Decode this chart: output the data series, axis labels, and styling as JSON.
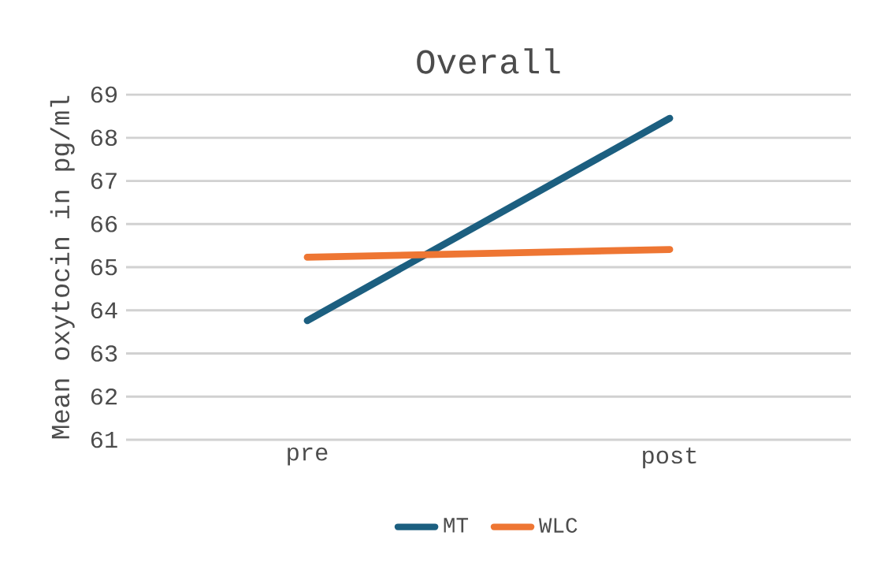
{
  "chart_data": {
    "type": "line",
    "title": "Overall",
    "ylabel": "Mean oxytocin in pg/ml",
    "categories": [
      "pre",
      "post"
    ],
    "series": [
      {
        "name": "MT",
        "color": "#1c5f80",
        "values": [
          63.76,
          68.45
        ]
      },
      {
        "name": "WLC",
        "color": "#ee7633",
        "values": [
          65.23,
          65.41
        ]
      }
    ],
    "ylim": [
      61,
      69
    ],
    "yticks": [
      61,
      62,
      63,
      64,
      65,
      66,
      67,
      68,
      69
    ],
    "grid": "y",
    "legend": "bottom",
    "marker": "none",
    "line_style": "solid"
  }
}
